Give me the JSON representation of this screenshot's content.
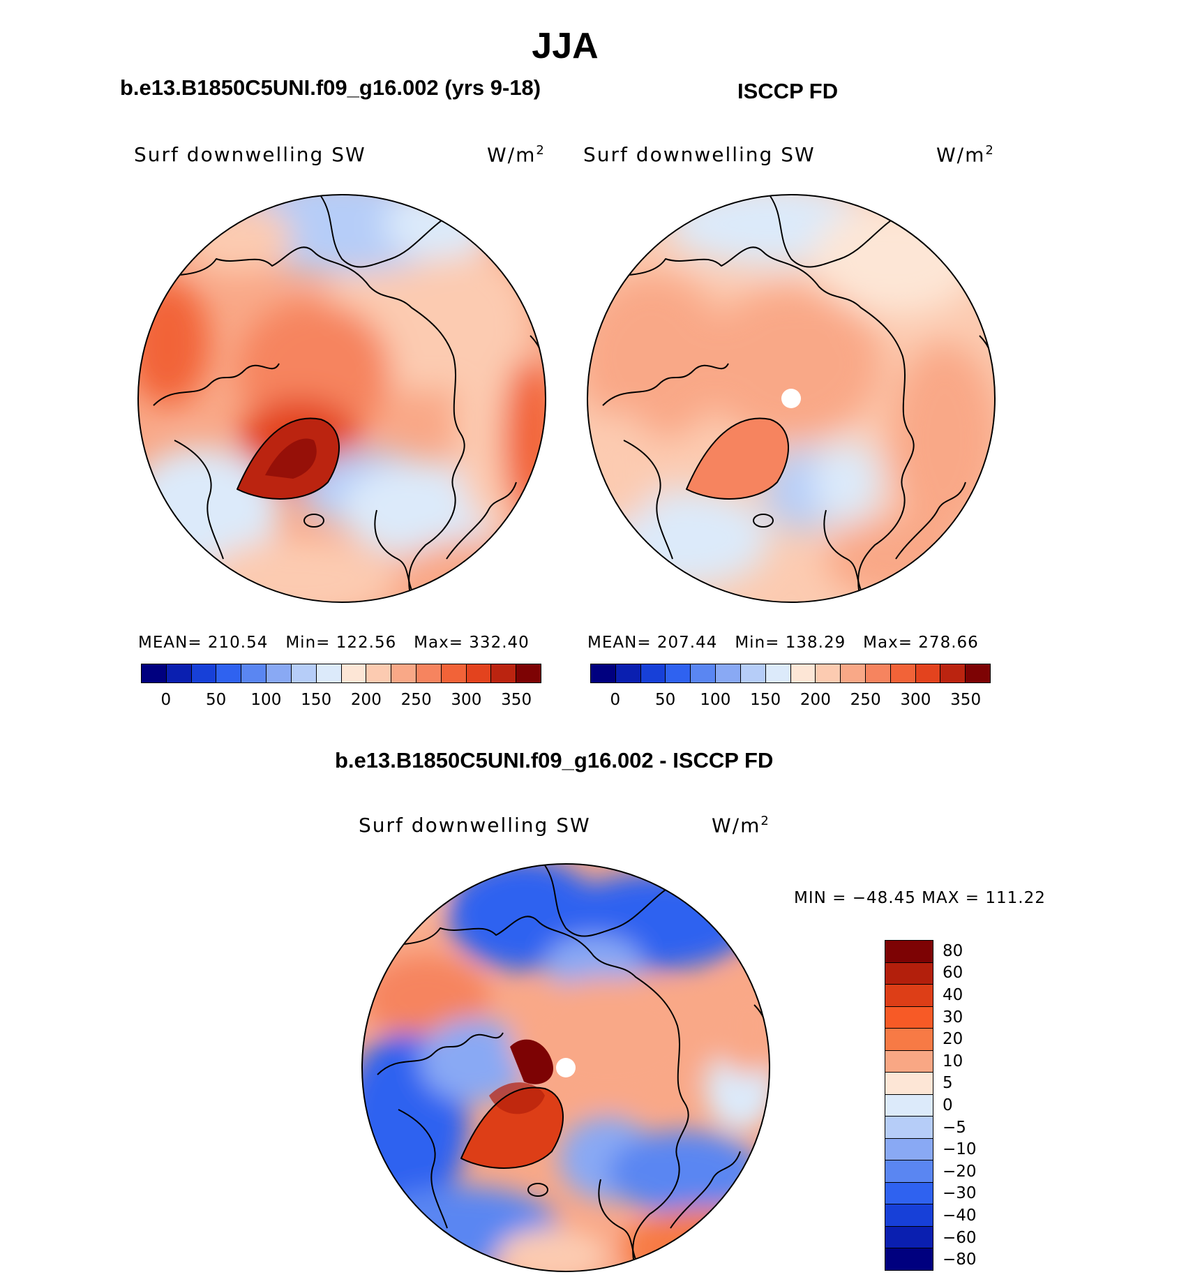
{
  "season": "JJA",
  "panels": {
    "model": {
      "title": "b.e13.B1850C5UNI.f09_g16.002 (yrs 9-18)",
      "label": "Surf downwelling SW",
      "units": "W/m",
      "units_sup": "2",
      "mean_label": "MEAN=",
      "mean": "210.54",
      "min_label": "Min=",
      "min": "122.56",
      "max_label": "Max=",
      "max": "332.40"
    },
    "obs": {
      "title": "ISCCP FD",
      "label": "Surf downwelling SW",
      "units": "W/m",
      "units_sup": "2",
      "mean_label": "MEAN=",
      "mean": "207.44",
      "min_label": "Min=",
      "min": "138.29",
      "max_label": "Max=",
      "max": "278.66"
    },
    "diff": {
      "title": "b.e13.B1850C5UNI.f09_g16.002 - ISCCP FD",
      "label": "Surf downwelling SW",
      "units": "W/m",
      "units_sup": "2",
      "minmax": "MIN = −48.45 MAX = 111.22"
    }
  },
  "colorbar_abs": {
    "colors": [
      "#00007f",
      "#0a1fb0",
      "#1740d8",
      "#2f62f0",
      "#5a86f2",
      "#89a9f4",
      "#b6cdf8",
      "#dceafa",
      "#fde6d6",
      "#fccbb1",
      "#f9a887",
      "#f6845f",
      "#f26338",
      "#e3431e",
      "#bb2410",
      "#7d0304"
    ],
    "ticks": [
      "0",
      "50",
      "100",
      "150",
      "200",
      "250",
      "300",
      "350"
    ]
  },
  "colorbar_diff": {
    "colors": [
      "#7d0304",
      "#b31f0c",
      "#dd3e17",
      "#f75a26",
      "#f77a45",
      "#f9a784",
      "#fde6d6",
      "#dceafa",
      "#b6cdf8",
      "#89a9f4",
      "#5a86f2",
      "#2f62f0",
      "#1740d8",
      "#0a1fb0",
      "#00007f"
    ],
    "ticks": [
      "80",
      "60",
      "40",
      "30",
      "20",
      "10",
      "5",
      "0",
      "−5",
      "−10",
      "−20",
      "−30",
      "−40",
      "−60",
      "−80"
    ]
  },
  "chart_data": [
    {
      "type": "heatmap",
      "projection": "north-polar-stereographic",
      "title": "b.e13.B1850C5UNI.f09_g16.002 (yrs 9-18)",
      "variable": "Surf downwelling SW",
      "units": "W/m2",
      "season": "JJA",
      "mean": 210.54,
      "min": 122.56,
      "max": 332.4,
      "contour_levels": [
        0,
        25,
        50,
        75,
        100,
        125,
        150,
        175,
        200,
        225,
        250,
        275,
        300,
        325,
        350
      ]
    },
    {
      "type": "heatmap",
      "projection": "north-polar-stereographic",
      "title": "ISCCP FD",
      "variable": "Surf downwelling SW",
      "units": "W/m2",
      "season": "JJA",
      "mean": 207.44,
      "min": 138.29,
      "max": 278.66,
      "contour_levels": [
        0,
        25,
        50,
        75,
        100,
        125,
        150,
        175,
        200,
        225,
        250,
        275,
        300,
        325,
        350
      ]
    },
    {
      "type": "heatmap",
      "projection": "north-polar-stereographic",
      "title": "b.e13.B1850C5UNI.f09_g16.002 - ISCCP FD",
      "variable": "Surf downwelling SW",
      "units": "W/m2",
      "season": "JJA",
      "min": -48.45,
      "max": 111.22,
      "contour_levels": [
        -80,
        -60,
        -40,
        -30,
        -20,
        -10,
        -5,
        0,
        5,
        10,
        20,
        30,
        40,
        60,
        80
      ]
    }
  ]
}
